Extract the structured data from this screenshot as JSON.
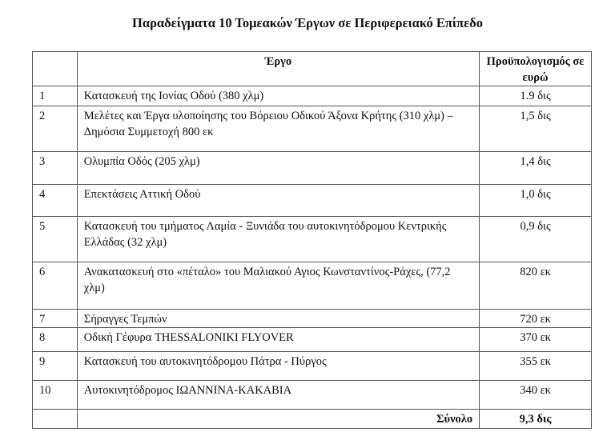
{
  "title": "Παραδείγματα 10 Τομεακών Έργων σε Περιφερειακό Επίπεδο",
  "table": {
    "headers": [
      "",
      "Έργο",
      "Προϋπολογισμός σε ευρώ"
    ],
    "rows": [
      {
        "num": "1",
        "work": "Κατασκευή της Ιονίας Οδού (380 χλμ)",
        "budget": "1.9 δις"
      },
      {
        "num": "2",
        "work": "Μελέτες και Έργα υλοποίησης του Βόρειου Οδικού Άξονα Κρήτης (310 χλμ) – Δημόσια Συμμετοχή 800 εκ",
        "budget": "1,5 δις"
      },
      {
        "num": "3",
        "work": "Ολυμπία Οδός (205 χλμ)",
        "budget": "1,4 δις"
      },
      {
        "num": "4",
        "work": "Επεκτάσεις Αττική Οδού",
        "budget": "1,0 δις"
      },
      {
        "num": "5",
        "work": "Κατασκευή του τμήματος Λαμία - Ξυνιάδα του αυτοκινητόδρομου Κεντρικής Ελλάδας (32 χλμ)",
        "budget": "0,9 δις"
      },
      {
        "num": "6",
        "work": "Ανακατασκευή στο «πέταλο» του Μαλιακού Αγιος Κωνσταντίνος-Ράχες, (77,2 χλμ)",
        "budget": "820 εκ"
      },
      {
        "num": "7",
        "work": "Σήραγγες Τεμπών",
        "budget": "720 εκ"
      },
      {
        "num": "8",
        "work": "Οδική Γέφυρα THESSALONIKI FLYOVER",
        "budget": "370 εκ"
      },
      {
        "num": "9",
        "work": "Κατασκευή του αυτοκινητόδρομου Πάτρα - Πύργος",
        "budget": "355 εκ"
      },
      {
        "num": "10",
        "work": "Αυτοκινητόδρομος ΙΩΑΝΝΙΝΑ-ΚΑΚΑΒΙΑ",
        "budget": "340 εκ"
      }
    ],
    "total_label": "Σύνολο",
    "total_value": "9,3 δις"
  }
}
